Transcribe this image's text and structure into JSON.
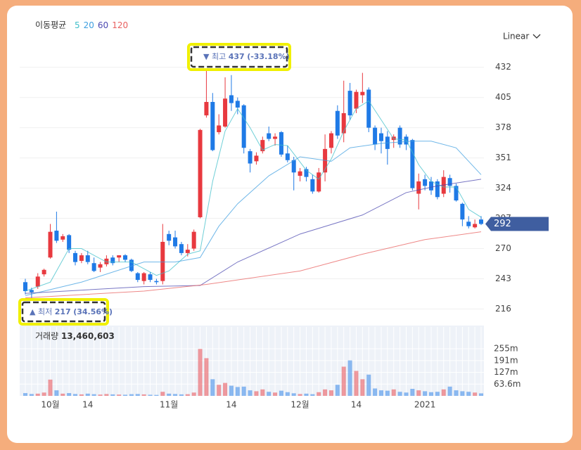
{
  "chart_data": {
    "type": "candlestick",
    "legend_title": "이동평균",
    "scale_label": "Linear",
    "categories": [
      null,
      null,
      null,
      null,
      "10월",
      null,
      null,
      null,
      null,
      null,
      "14",
      null,
      null,
      null,
      null,
      null,
      null,
      null,
      null,
      null,
      null,
      null,
      null,
      "11월",
      null,
      null,
      null,
      null,
      null,
      null,
      null,
      null,
      null,
      "14",
      null,
      null,
      null,
      null,
      null,
      null,
      null,
      null,
      null,
      null,
      "12월",
      null,
      null,
      null,
      null,
      null,
      null,
      null,
      null,
      "14",
      null,
      null,
      null,
      null,
      null,
      null,
      null,
      null,
      null,
      null,
      "2021",
      null,
      null,
      null,
      null,
      null,
      null,
      null,
      null,
      null
    ],
    "open": [
      240,
      233,
      236,
      247,
      262,
      286,
      278,
      282,
      266,
      259,
      264,
      257,
      253,
      256,
      262,
      262,
      264,
      260,
      248,
      241,
      247,
      241,
      241,
      283,
      280,
      274,
      266,
      270,
      298,
      389,
      401,
      374,
      379,
      407,
      402,
      398,
      357,
      348,
      357,
      373,
      368,
      374,
      355,
      349,
      335,
      341,
      332,
      321,
      338,
      360,
      393,
      373,
      411,
      395,
      407,
      412,
      378,
      373,
      370,
      367,
      378,
      370,
      367,
      319,
      332,
      330,
      330,
      319,
      333,
      326,
      310,
      294,
      289,
      296
    ],
    "high": [
      243,
      235,
      248,
      252,
      292,
      303,
      283,
      283,
      268,
      266,
      268,
      262,
      258,
      264,
      264,
      264,
      265,
      261,
      249,
      249,
      249,
      243,
      292,
      286,
      286,
      276,
      274,
      287,
      377,
      437,
      409,
      390,
      423,
      425,
      405,
      399,
      359,
      356,
      370,
      379,
      373,
      375,
      362,
      352,
      342,
      343,
      336,
      342,
      372,
      375,
      398,
      420,
      418,
      412,
      427,
      414,
      380,
      378,
      375,
      372,
      380,
      372,
      368,
      337,
      336,
      334,
      332,
      340,
      336,
      328,
      311,
      299,
      296,
      299
    ],
    "low": [
      229,
      217,
      234,
      245,
      261,
      275,
      276,
      266,
      255,
      257,
      256,
      249,
      249,
      254,
      255,
      258,
      258,
      249,
      240,
      238,
      240,
      238,
      238,
      273,
      270,
      264,
      263,
      268,
      297,
      387,
      357,
      372,
      378,
      393,
      390,
      355,
      338,
      345,
      355,
      366,
      362,
      352,
      347,
      322,
      330,
      330,
      319,
      320,
      330,
      355,
      368,
      365,
      385,
      391,
      400,
      374,
      358,
      355,
      345,
      360,
      360,
      358,
      322,
      305,
      322,
      318,
      314,
      316,
      320,
      312,
      290,
      288,
      288,
      291
    ],
    "close": [
      232,
      231,
      245,
      251,
      285,
      277,
      281,
      269,
      258,
      264,
      258,
      250,
      256,
      261,
      257,
      264,
      260,
      250,
      242,
      248,
      242,
      240,
      276,
      277,
      272,
      266,
      269,
      285,
      376,
      401,
      358,
      380,
      404,
      400,
      396,
      360,
      346,
      353,
      367,
      368,
      370,
      354,
      349,
      338,
      339,
      334,
      321,
      338,
      359,
      373,
      371,
      391,
      389,
      410,
      410,
      378,
      363,
      366,
      359,
      370,
      363,
      363,
      324,
      330,
      326,
      322,
      316,
      334,
      326,
      313,
      296,
      290,
      292,
      292
    ],
    "up_color": "#e8393f",
    "down_color": "#1f7ae6",
    "ylim": [
      205,
      450
    ],
    "yticks": [
      216,
      243,
      270,
      297,
      324,
      351,
      378,
      405,
      432
    ],
    "grid": true,
    "ma_series": [
      {
        "name": "5",
        "color": "#3fbfc9",
        "x": [
          0,
          4,
          7,
          9,
          13,
          17,
          21,
          23,
          26,
          28,
          30,
          32,
          34,
          36,
          38,
          40,
          42,
          45,
          47,
          49,
          51,
          53,
          55,
          57,
          59,
          61,
          63,
          65,
          67,
          69,
          71,
          73
        ],
        "values": [
          232,
          240,
          270,
          270,
          258,
          258,
          246,
          250,
          265,
          268,
          330,
          375,
          395,
          378,
          358,
          363,
          362,
          340,
          332,
          350,
          375,
          395,
          402,
          385,
          368,
          367,
          345,
          330,
          325,
          325,
          305,
          298
        ]
      },
      {
        "name": "20",
        "color": "#3f9fe0",
        "x": [
          0,
          9,
          19,
          24,
          28,
          31,
          34,
          39,
          44,
          49,
          52,
          57,
          62,
          65,
          69,
          72,
          73
        ],
        "values": [
          228,
          240,
          258,
          258,
          262,
          290,
          310,
          335,
          352,
          348,
          360,
          364,
          366,
          366,
          360,
          342,
          336
        ]
      },
      {
        "name": "60",
        "color": "#4b48b0",
        "x": [
          0,
          19,
          28,
          34,
          44,
          54,
          61,
          66,
          73
        ],
        "values": [
          230,
          236,
          237,
          258,
          283,
          300,
          320,
          326,
          332
        ]
      },
      {
        "name": "120",
        "color": "#e8605f",
        "x": [
          0,
          19,
          29,
          44,
          54,
          64,
          73
        ],
        "values": [
          226,
          232,
          238,
          250,
          265,
          278,
          285
        ]
      }
    ],
    "high_mark": {
      "marker": "▼",
      "label": "최고",
      "value": 437,
      "change": "(-33.18%)"
    },
    "low_mark": {
      "marker": "▲",
      "label": "최저",
      "value": 217,
      "change": "(34.56%)"
    },
    "last_price": 292,
    "volume": {
      "label": "거래량",
      "current": "13,460,603",
      "values": [
        15,
        10,
        12,
        18,
        88,
        30,
        12,
        15,
        10,
        8,
        12,
        9,
        7,
        10,
        8,
        7,
        6,
        9,
        10,
        8,
        6,
        5,
        22,
        12,
        10,
        8,
        9,
        18,
        254,
        204,
        90,
        60,
        70,
        55,
        48,
        50,
        30,
        25,
        35,
        22,
        18,
        28,
        20,
        14,
        10,
        12,
        9,
        20,
        35,
        30,
        60,
        158,
        192,
        135,
        90,
        115,
        40,
        30,
        28,
        35,
        22,
        18,
        38,
        30,
        25,
        20,
        22,
        35,
        50,
        30,
        25,
        22,
        18,
        13.460603
      ],
      "ylim": [
        0,
        373
      ],
      "yticks": [
        {
          "value": 63.6,
          "label": "63.6m"
        },
        {
          "value": 127,
          "label": "127m"
        },
        {
          "value": 191,
          "label": "191m"
        },
        {
          "value": 255,
          "label": "255m"
        }
      ]
    }
  }
}
